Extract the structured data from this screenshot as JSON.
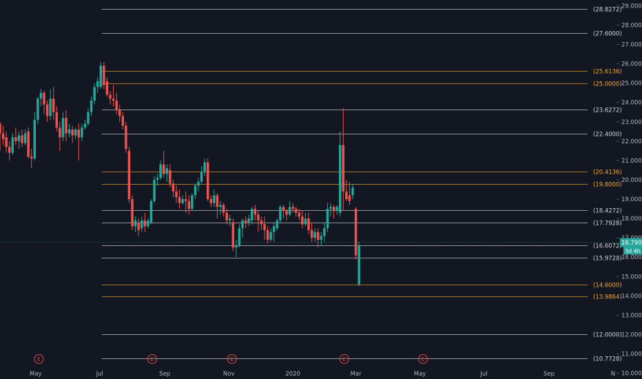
{
  "chart_data": {
    "type": "candlestick",
    "colors": {
      "background": "#131722",
      "up": "#26a69a",
      "down": "#ef5350",
      "white_level": "#d1d4dc",
      "orange_level": "#f5a623",
      "last_price_bg": "#26a69a",
      "axis_text": "#b2b5be",
      "event_marker": "#e04848"
    },
    "y_ticks": [
      "29.0000",
      "28.0000",
      "27.0000",
      "26.0000",
      "25.0000",
      "24.0000",
      "23.0000",
      "22.0000",
      "21.0000",
      "20.0000",
      "19.0000",
      "18.0000",
      "17.0000",
      "16.0000",
      "15.0000",
      "14.0000",
      "13.0000",
      "12.0000",
      "11.0000",
      "10.0000"
    ],
    "ylim": [
      9.7,
      29.3
    ],
    "x_ticks": [
      {
        "label": "May",
        "date": "2019-05-01"
      },
      {
        "label": "Jul",
        "date": "2019-07-01"
      },
      {
        "label": "Sep",
        "date": "2019-09-01"
      },
      {
        "label": "Nov",
        "date": "2019-11-01"
      },
      {
        "label": "2020",
        "date": "2020-01-01"
      },
      {
        "label": "Mar",
        "date": "2020-03-01"
      },
      {
        "label": "May",
        "date": "2020-05-01"
      },
      {
        "label": "Jul",
        "date": "2020-07-01"
      },
      {
        "label": "Sep",
        "date": "2020-09-01"
      },
      {
        "label": "N",
        "date": "2020-11-01"
      }
    ],
    "xlim": [
      "2019-03-28",
      "2020-11-03"
    ],
    "levels": [
      {
        "value": 28.8272,
        "label": "(28.8272)",
        "color": "white",
        "start": "2019-07-03"
      },
      {
        "value": 27.6,
        "label": "(27.6000)",
        "color": "white",
        "start": "2019-07-03"
      },
      {
        "value": 25.6136,
        "label": "(25.6136)",
        "color": "orange",
        "start": "2019-07-03"
      },
      {
        "value": 25.0,
        "label": "(25.0000)",
        "color": "orange",
        "start": "2019-07-03"
      },
      {
        "value": 23.6272,
        "label": "(23.6272)",
        "color": "white",
        "start": "2019-07-03"
      },
      {
        "value": 22.4,
        "label": "(22.4000)",
        "color": "white",
        "start": "2019-07-03"
      },
      {
        "value": 20.4136,
        "label": "(20.4136)",
        "color": "orange",
        "start": "2019-07-03"
      },
      {
        "value": 19.8,
        "label": "(19.8000)",
        "color": "orange",
        "start": "2019-07-03"
      },
      {
        "value": 18.4272,
        "label": "(18.4272)",
        "color": "white",
        "start": "2019-07-03"
      },
      {
        "value": 17.7928,
        "label": "(17.7928)",
        "color": "white",
        "start": "2019-07-03"
      },
      {
        "value": 16.6072,
        "label": "(16.6072)",
        "color": "white",
        "start": "2019-07-03"
      },
      {
        "value": 15.9728,
        "label": "(15.9728)",
        "color": "white",
        "start": "2019-07-03"
      },
      {
        "value": 14.6,
        "label": "(14.6000)",
        "color": "orange",
        "start": "2019-07-03"
      },
      {
        "value": 13.9864,
        "label": "(13.9864)",
        "color": "orange",
        "start": "2019-07-03"
      },
      {
        "value": 12.0,
        "label": "(12.0000)",
        "color": "white",
        "start": "2019-07-03"
      },
      {
        "value": 10.7728,
        "label": "(10.7728)",
        "color": "white",
        "start": "2019-07-03"
      }
    ],
    "last_price": {
      "value": 16.79,
      "label": "16.7900",
      "sub_label": "3d 4h"
    },
    "events": [
      {
        "label": "E",
        "date": "2019-05-04"
      },
      {
        "label": "E",
        "date": "2019-08-20"
      },
      {
        "label": "E",
        "date": "2019-11-04"
      },
      {
        "label": "E",
        "date": "2020-02-19"
      },
      {
        "label": "E",
        "date": "2020-05-04"
      }
    ],
    "candles": [
      {
        "date": "2019-03-28",
        "o": 22.9,
        "h": 23.0,
        "c": 22.4,
        "l": 21.5
      },
      {
        "date": "2019-03-31",
        "o": 22.4,
        "h": 22.8,
        "c": 22.1,
        "l": 21.8
      },
      {
        "date": "2019-04-03",
        "o": 22.2,
        "h": 22.5,
        "c": 21.7,
        "l": 21.4
      },
      {
        "date": "2019-04-06",
        "o": 21.7,
        "h": 22.0,
        "c": 21.4,
        "l": 21.0
      },
      {
        "date": "2019-04-09",
        "o": 21.4,
        "h": 22.4,
        "c": 22.2,
        "l": 21.3
      },
      {
        "date": "2019-04-12",
        "o": 22.2,
        "h": 22.7,
        "c": 22.0,
        "l": 21.8
      },
      {
        "date": "2019-04-15",
        "o": 22.0,
        "h": 22.5,
        "c": 22.3,
        "l": 21.6
      },
      {
        "date": "2019-04-18",
        "o": 22.3,
        "h": 22.6,
        "c": 21.9,
        "l": 21.7
      },
      {
        "date": "2019-04-21",
        "o": 21.9,
        "h": 22.6,
        "c": 22.4,
        "l": 21.8
      },
      {
        "date": "2019-04-24",
        "o": 22.5,
        "h": 22.7,
        "c": 21.2,
        "l": 21.1
      },
      {
        "date": "2019-04-27",
        "o": 21.2,
        "h": 21.6,
        "c": 21.1,
        "l": 20.6
      },
      {
        "date": "2019-04-30",
        "o": 21.1,
        "h": 23.5,
        "c": 23.1,
        "l": 21.0
      },
      {
        "date": "2019-05-03",
        "o": 23.1,
        "h": 24.3,
        "c": 24.2,
        "l": 22.9
      },
      {
        "date": "2019-05-06",
        "o": 24.2,
        "h": 24.7,
        "c": 24.5,
        "l": 23.8
      },
      {
        "date": "2019-05-09",
        "o": 24.5,
        "h": 24.6,
        "c": 23.9,
        "l": 23.4
      },
      {
        "date": "2019-05-12",
        "o": 23.9,
        "h": 24.1,
        "c": 23.3,
        "l": 23.0
      },
      {
        "date": "2019-05-15",
        "o": 23.3,
        "h": 24.7,
        "c": 24.2,
        "l": 23.1
      },
      {
        "date": "2019-05-18",
        "o": 24.2,
        "h": 24.8,
        "c": 23.5,
        "l": 23.1
      },
      {
        "date": "2019-05-21",
        "o": 23.5,
        "h": 23.8,
        "c": 22.7,
        "l": 22.5
      },
      {
        "date": "2019-05-24",
        "o": 22.7,
        "h": 23.0,
        "c": 22.2,
        "l": 21.5
      },
      {
        "date": "2019-05-27",
        "o": 22.2,
        "h": 23.5,
        "c": 23.2,
        "l": 22.0
      },
      {
        "date": "2019-05-30",
        "o": 23.2,
        "h": 23.6,
        "c": 22.4,
        "l": 22.0
      },
      {
        "date": "2019-06-02",
        "o": 22.4,
        "h": 22.9,
        "c": 22.6,
        "l": 22.2
      },
      {
        "date": "2019-06-05",
        "o": 22.6,
        "h": 22.8,
        "c": 22.3,
        "l": 21.9
      },
      {
        "date": "2019-06-08",
        "o": 22.3,
        "h": 22.7,
        "c": 22.6,
        "l": 22.1
      },
      {
        "date": "2019-06-11",
        "o": 22.6,
        "h": 22.9,
        "c": 22.2,
        "l": 21.0
      },
      {
        "date": "2019-06-14",
        "o": 22.2,
        "h": 22.9,
        "c": 22.7,
        "l": 22.0
      },
      {
        "date": "2019-06-17",
        "o": 22.7,
        "h": 23.1,
        "c": 22.9,
        "l": 22.6
      },
      {
        "date": "2019-06-20",
        "o": 22.9,
        "h": 23.7,
        "c": 23.5,
        "l": 22.8
      },
      {
        "date": "2019-06-23",
        "o": 23.5,
        "h": 24.3,
        "c": 24.1,
        "l": 23.3
      },
      {
        "date": "2019-06-26",
        "o": 24.1,
        "h": 25.0,
        "c": 24.8,
        "l": 23.9
      },
      {
        "date": "2019-06-29",
        "o": 24.8,
        "h": 25.3,
        "c": 25.1,
        "l": 24.5
      },
      {
        "date": "2019-07-02",
        "o": 24.8,
        "h": 26.1,
        "c": 25.9,
        "l": 24.7
      },
      {
        "date": "2019-07-05",
        "o": 25.9,
        "h": 26.1,
        "c": 24.9,
        "l": 24.7
      },
      {
        "date": "2019-07-08",
        "o": 25.1,
        "h": 25.3,
        "c": 24.4,
        "l": 24.3
      },
      {
        "date": "2019-07-11",
        "o": 24.4,
        "h": 24.6,
        "c": 24.2,
        "l": 23.9
      },
      {
        "date": "2019-07-14",
        "o": 24.2,
        "h": 24.9,
        "c": 24.1,
        "l": 23.8
      },
      {
        "date": "2019-07-17",
        "o": 24.1,
        "h": 24.5,
        "c": 23.6,
        "l": 23.4
      },
      {
        "date": "2019-07-20",
        "o": 23.6,
        "h": 23.9,
        "c": 23.3,
        "l": 23.0
      },
      {
        "date": "2019-07-23",
        "o": 23.3,
        "h": 23.5,
        "c": 22.8,
        "l": 22.6
      },
      {
        "date": "2019-07-26",
        "o": 22.8,
        "h": 23.0,
        "c": 21.6,
        "l": 21.4
      },
      {
        "date": "2019-07-29",
        "o": 21.5,
        "h": 21.7,
        "c": 19.0,
        "l": 18.8
      },
      {
        "date": "2019-08-01",
        "o": 19.0,
        "h": 19.2,
        "c": 17.6,
        "l": 17.4
      },
      {
        "date": "2019-08-04",
        "o": 17.6,
        "h": 18.1,
        "c": 17.9,
        "l": 17.3
      },
      {
        "date": "2019-08-07",
        "o": 17.8,
        "h": 18.0,
        "c": 17.4,
        "l": 17.1
      },
      {
        "date": "2019-08-10",
        "o": 17.5,
        "h": 18.1,
        "c": 17.9,
        "l": 17.3
      },
      {
        "date": "2019-08-13",
        "o": 17.9,
        "h": 18.3,
        "c": 17.6,
        "l": 17.3
      },
      {
        "date": "2019-08-16",
        "o": 17.6,
        "h": 18.0,
        "c": 17.9,
        "l": 17.5
      },
      {
        "date": "2019-08-19",
        "o": 17.8,
        "h": 19.0,
        "c": 18.9,
        "l": 17.7
      },
      {
        "date": "2019-08-22",
        "o": 18.9,
        "h": 20.2,
        "c": 20.0,
        "l": 18.8
      },
      {
        "date": "2019-08-25",
        "o": 20.0,
        "h": 20.3,
        "c": 20.1,
        "l": 19.7
      },
      {
        "date": "2019-08-28",
        "o": 20.1,
        "h": 21.0,
        "c": 20.8,
        "l": 20.0
      },
      {
        "date": "2019-08-31",
        "o": 20.8,
        "h": 21.5,
        "c": 20.3,
        "l": 20.1
      },
      {
        "date": "2019-09-03",
        "o": 20.3,
        "h": 20.8,
        "c": 20.6,
        "l": 19.9
      },
      {
        "date": "2019-09-06",
        "o": 20.5,
        "h": 20.8,
        "c": 19.8,
        "l": 19.6
      },
      {
        "date": "2019-09-09",
        "o": 19.8,
        "h": 20.0,
        "c": 19.4,
        "l": 19.1
      },
      {
        "date": "2019-09-12",
        "o": 19.4,
        "h": 19.7,
        "c": 19.1,
        "l": 18.8
      },
      {
        "date": "2019-09-15",
        "o": 19.1,
        "h": 19.5,
        "c": 18.8,
        "l": 18.5
      },
      {
        "date": "2019-09-18",
        "o": 18.8,
        "h": 19.2,
        "c": 19.0,
        "l": 18.7
      },
      {
        "date": "2019-09-21",
        "o": 19.0,
        "h": 19.4,
        "c": 18.9,
        "l": 18.3
      },
      {
        "date": "2019-09-24",
        "o": 18.9,
        "h": 19.2,
        "c": 18.5,
        "l": 18.2
      },
      {
        "date": "2019-09-27",
        "o": 18.5,
        "h": 19.3,
        "c": 19.2,
        "l": 18.4
      },
      {
        "date": "2019-09-30",
        "o": 19.2,
        "h": 19.8,
        "c": 19.7,
        "l": 19.0
      },
      {
        "date": "2019-10-03",
        "o": 19.7,
        "h": 20.1,
        "c": 19.9,
        "l": 19.4
      },
      {
        "date": "2019-10-06",
        "o": 19.9,
        "h": 20.7,
        "c": 20.4,
        "l": 19.8
      },
      {
        "date": "2019-10-09",
        "o": 20.4,
        "h": 21.1,
        "c": 20.9,
        "l": 20.2
      },
      {
        "date": "2019-10-12",
        "o": 20.9,
        "h": 21.1,
        "c": 19.0,
        "l": 18.9
      },
      {
        "date": "2019-10-15",
        "o": 19.0,
        "h": 19.2,
        "c": 18.8,
        "l": 18.6
      },
      {
        "date": "2019-10-18",
        "o": 18.8,
        "h": 19.5,
        "c": 19.2,
        "l": 18.6
      },
      {
        "date": "2019-10-21",
        "o": 19.2,
        "h": 19.3,
        "c": 18.6,
        "l": 18.0
      },
      {
        "date": "2019-10-24",
        "o": 18.6,
        "h": 18.9,
        "c": 18.7,
        "l": 18.2
      },
      {
        "date": "2019-10-27",
        "o": 18.7,
        "h": 18.8,
        "c": 18.3,
        "l": 18.1
      },
      {
        "date": "2019-10-30",
        "o": 18.3,
        "h": 18.5,
        "c": 17.9,
        "l": 17.7
      },
      {
        "date": "2019-11-02",
        "o": 17.9,
        "h": 18.2,
        "c": 18.0,
        "l": 17.6
      },
      {
        "date": "2019-11-05",
        "o": 17.8,
        "h": 18.0,
        "c": 16.5,
        "l": 16.3
      },
      {
        "date": "2019-11-08",
        "o": 16.5,
        "h": 16.9,
        "c": 16.6,
        "l": 16.0
      },
      {
        "date": "2019-11-11",
        "o": 16.6,
        "h": 17.7,
        "c": 17.5,
        "l": 16.5
      },
      {
        "date": "2019-11-14",
        "o": 17.5,
        "h": 18.0,
        "c": 17.9,
        "l": 17.0
      },
      {
        "date": "2019-11-17",
        "o": 17.9,
        "h": 18.1,
        "c": 17.8,
        "l": 17.5
      },
      {
        "date": "2019-11-20",
        "o": 17.8,
        "h": 18.2,
        "c": 18.0,
        "l": 17.6
      },
      {
        "date": "2019-11-23",
        "o": 17.9,
        "h": 18.6,
        "c": 18.5,
        "l": 17.7
      },
      {
        "date": "2019-11-26",
        "o": 18.5,
        "h": 18.7,
        "c": 18.2,
        "l": 17.9
      },
      {
        "date": "2019-11-29",
        "o": 18.2,
        "h": 18.4,
        "c": 17.9,
        "l": 17.3
      },
      {
        "date": "2019-12-02",
        "o": 17.9,
        "h": 18.1,
        "c": 17.7,
        "l": 17.4
      },
      {
        "date": "2019-12-05",
        "o": 17.7,
        "h": 18.1,
        "c": 17.4,
        "l": 16.9
      },
      {
        "date": "2019-12-08",
        "o": 17.4,
        "h": 17.6,
        "c": 16.9,
        "l": 16.7
      },
      {
        "date": "2019-12-11",
        "o": 16.9,
        "h": 17.5,
        "c": 17.3,
        "l": 16.8
      },
      {
        "date": "2019-12-14",
        "o": 17.3,
        "h": 17.8,
        "c": 17.6,
        "l": 16.8
      },
      {
        "date": "2019-12-17",
        "o": 17.5,
        "h": 18.0,
        "c": 17.9,
        "l": 17.4
      },
      {
        "date": "2019-12-20",
        "o": 17.9,
        "h": 18.7,
        "c": 18.6,
        "l": 17.8
      },
      {
        "date": "2019-12-23",
        "o": 18.6,
        "h": 18.7,
        "c": 18.4,
        "l": 18.0
      },
      {
        "date": "2019-12-26",
        "o": 18.4,
        "h": 18.5,
        "c": 18.2,
        "l": 17.9
      },
      {
        "date": "2019-12-29",
        "o": 18.2,
        "h": 18.9,
        "c": 18.6,
        "l": 18.1
      },
      {
        "date": "2020-01-01",
        "o": 18.6,
        "h": 18.8,
        "c": 18.5,
        "l": 18.3
      },
      {
        "date": "2020-01-04",
        "o": 18.5,
        "h": 18.6,
        "c": 18.3,
        "l": 18.1
      },
      {
        "date": "2020-01-07",
        "o": 18.3,
        "h": 18.5,
        "c": 18.1,
        "l": 17.9
      },
      {
        "date": "2020-01-10",
        "o": 18.1,
        "h": 18.4,
        "c": 17.7,
        "l": 17.5
      },
      {
        "date": "2020-01-13",
        "o": 17.7,
        "h": 18.3,
        "c": 18.0,
        "l": 17.6
      },
      {
        "date": "2020-01-16",
        "o": 18.0,
        "h": 18.3,
        "c": 17.4,
        "l": 17.2
      },
      {
        "date": "2020-01-19",
        "o": 17.4,
        "h": 17.8,
        "c": 17.0,
        "l": 16.8
      },
      {
        "date": "2020-01-22",
        "o": 17.0,
        "h": 17.5,
        "c": 17.3,
        "l": 16.8
      },
      {
        "date": "2020-01-25",
        "o": 17.3,
        "h": 17.5,
        "c": 16.9,
        "l": 16.5
      },
      {
        "date": "2020-01-28",
        "o": 16.9,
        "h": 17.3,
        "c": 17.1,
        "l": 16.6
      },
      {
        "date": "2020-01-31",
        "o": 17.1,
        "h": 17.8,
        "c": 17.5,
        "l": 16.8
      },
      {
        "date": "2020-02-03",
        "o": 17.5,
        "h": 18.8,
        "c": 18.5,
        "l": 17.3
      },
      {
        "date": "2020-02-06",
        "o": 18.5,
        "h": 18.8,
        "c": 18.6,
        "l": 18.1
      },
      {
        "date": "2020-02-09",
        "o": 18.6,
        "h": 18.7,
        "c": 18.4,
        "l": 18.0
      },
      {
        "date": "2020-02-12",
        "o": 18.4,
        "h": 18.7,
        "c": 18.6,
        "l": 18.2
      },
      {
        "date": "2020-02-15",
        "o": 18.3,
        "h": 22.5,
        "c": 21.8,
        "l": 18.1
      },
      {
        "date": "2020-02-18",
        "o": 21.8,
        "h": 23.7,
        "c": 19.4,
        "l": 18.4
      },
      {
        "date": "2020-02-21",
        "o": 19.4,
        "h": 20.0,
        "c": 19.0,
        "l": 18.9
      },
      {
        "date": "2020-02-24",
        "o": 19.2,
        "h": 19.9,
        "c": 18.9,
        "l": 18.7
      },
      {
        "date": "2020-02-27",
        "o": 19.2,
        "h": 19.8,
        "c": 19.6,
        "l": 19.0
      },
      {
        "date": "2020-03-01",
        "o": 18.5,
        "h": 18.6,
        "c": 16.1,
        "l": 15.9
      },
      {
        "date": "2020-03-04",
        "o": 14.6,
        "h": 16.8,
        "c": 16.6,
        "l": 14.5
      }
    ]
  }
}
